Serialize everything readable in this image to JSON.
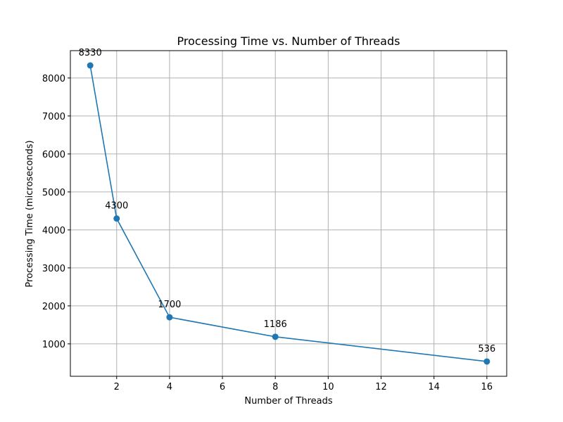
{
  "chart_data": {
    "type": "line",
    "title": "Processing Time vs. Number of Threads",
    "xlabel": "Number of Threads",
    "ylabel": "Processing Time (microseconds)",
    "x": [
      1,
      2,
      4,
      8,
      16
    ],
    "series": [
      {
        "values": [
          8330,
          4300,
          1700,
          1186,
          536
        ],
        "color": "#1f77b4",
        "marker": "circle"
      }
    ],
    "data_labels": [
      "8330",
      "4300",
      "1700",
      "1186",
      "536"
    ],
    "xlim": [
      0.25,
      16.75
    ],
    "ylim": [
      146,
      8720
    ],
    "xticks": [
      2,
      4,
      6,
      8,
      10,
      12,
      14,
      16
    ],
    "xtick_labels": [
      "2",
      "4",
      "6",
      "8",
      "10",
      "12",
      "14",
      "16"
    ],
    "yticks": [
      1000,
      2000,
      3000,
      4000,
      5000,
      6000,
      7000,
      8000
    ],
    "ytick_labels": [
      "1000",
      "2000",
      "3000",
      "4000",
      "5000",
      "6000",
      "7000",
      "8000"
    ],
    "grid": true,
    "grid_color": "#b0b0b0",
    "legend": "none"
  }
}
